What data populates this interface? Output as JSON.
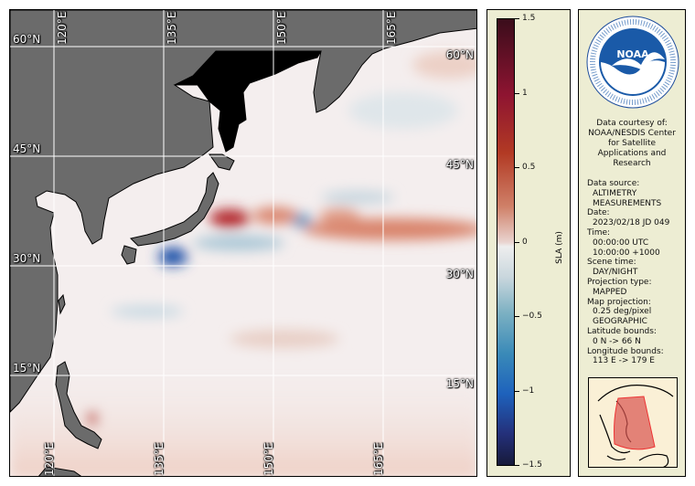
{
  "map": {
    "lon_labels": [
      "120°E",
      "135°E",
      "150°E",
      "165°E"
    ],
    "lat_labels": [
      "60°N",
      "45°N",
      "30°N",
      "15°N"
    ],
    "land_color": "#6b6b6b",
    "ice_color": "#000000"
  },
  "colorbar": {
    "label": "SLA (m)",
    "ticks": [
      {
        "value": 1.5,
        "label": "1.5"
      },
      {
        "value": 1,
        "label": "1"
      },
      {
        "value": 0.5,
        "label": "0.5"
      },
      {
        "value": 0,
        "label": "0"
      },
      {
        "value": -0.5,
        "label": "−0.5"
      },
      {
        "value": -1,
        "label": "−1"
      },
      {
        "value": -1.5,
        "label": "−1.5"
      }
    ],
    "range": [
      -1.5,
      1.5
    ]
  },
  "info": {
    "logo_text": "NOAA",
    "courtesy": [
      "Data courtesy of:",
      "NOAA/NESDIS Center",
      "for Satellite",
      "Applications and",
      "Research"
    ],
    "fields": [
      {
        "label": "Data source:",
        "values": [
          "ALTIMETRY",
          "MEASUREMENTS"
        ]
      },
      {
        "label": "Date:",
        "values": [
          "2023/02/18 JD 049"
        ]
      },
      {
        "label": "Time:",
        "values": [
          "00:00:00 UTC",
          "10:00:00 +1000"
        ]
      },
      {
        "label": "Scene time:",
        "values": [
          "DAY/NIGHT"
        ]
      },
      {
        "label": "Projection type:",
        "values": [
          "MAPPED"
        ]
      },
      {
        "label": "Map projection:",
        "values": [
          "0.25 deg/pixel",
          "GEOGRAPHIC"
        ]
      },
      {
        "label": "Latitude bounds:",
        "values": [
          "0 N -> 66 N"
        ]
      },
      {
        "label": "Longitude bounds:",
        "values": [
          "113 E -> 179 E"
        ]
      }
    ]
  }
}
